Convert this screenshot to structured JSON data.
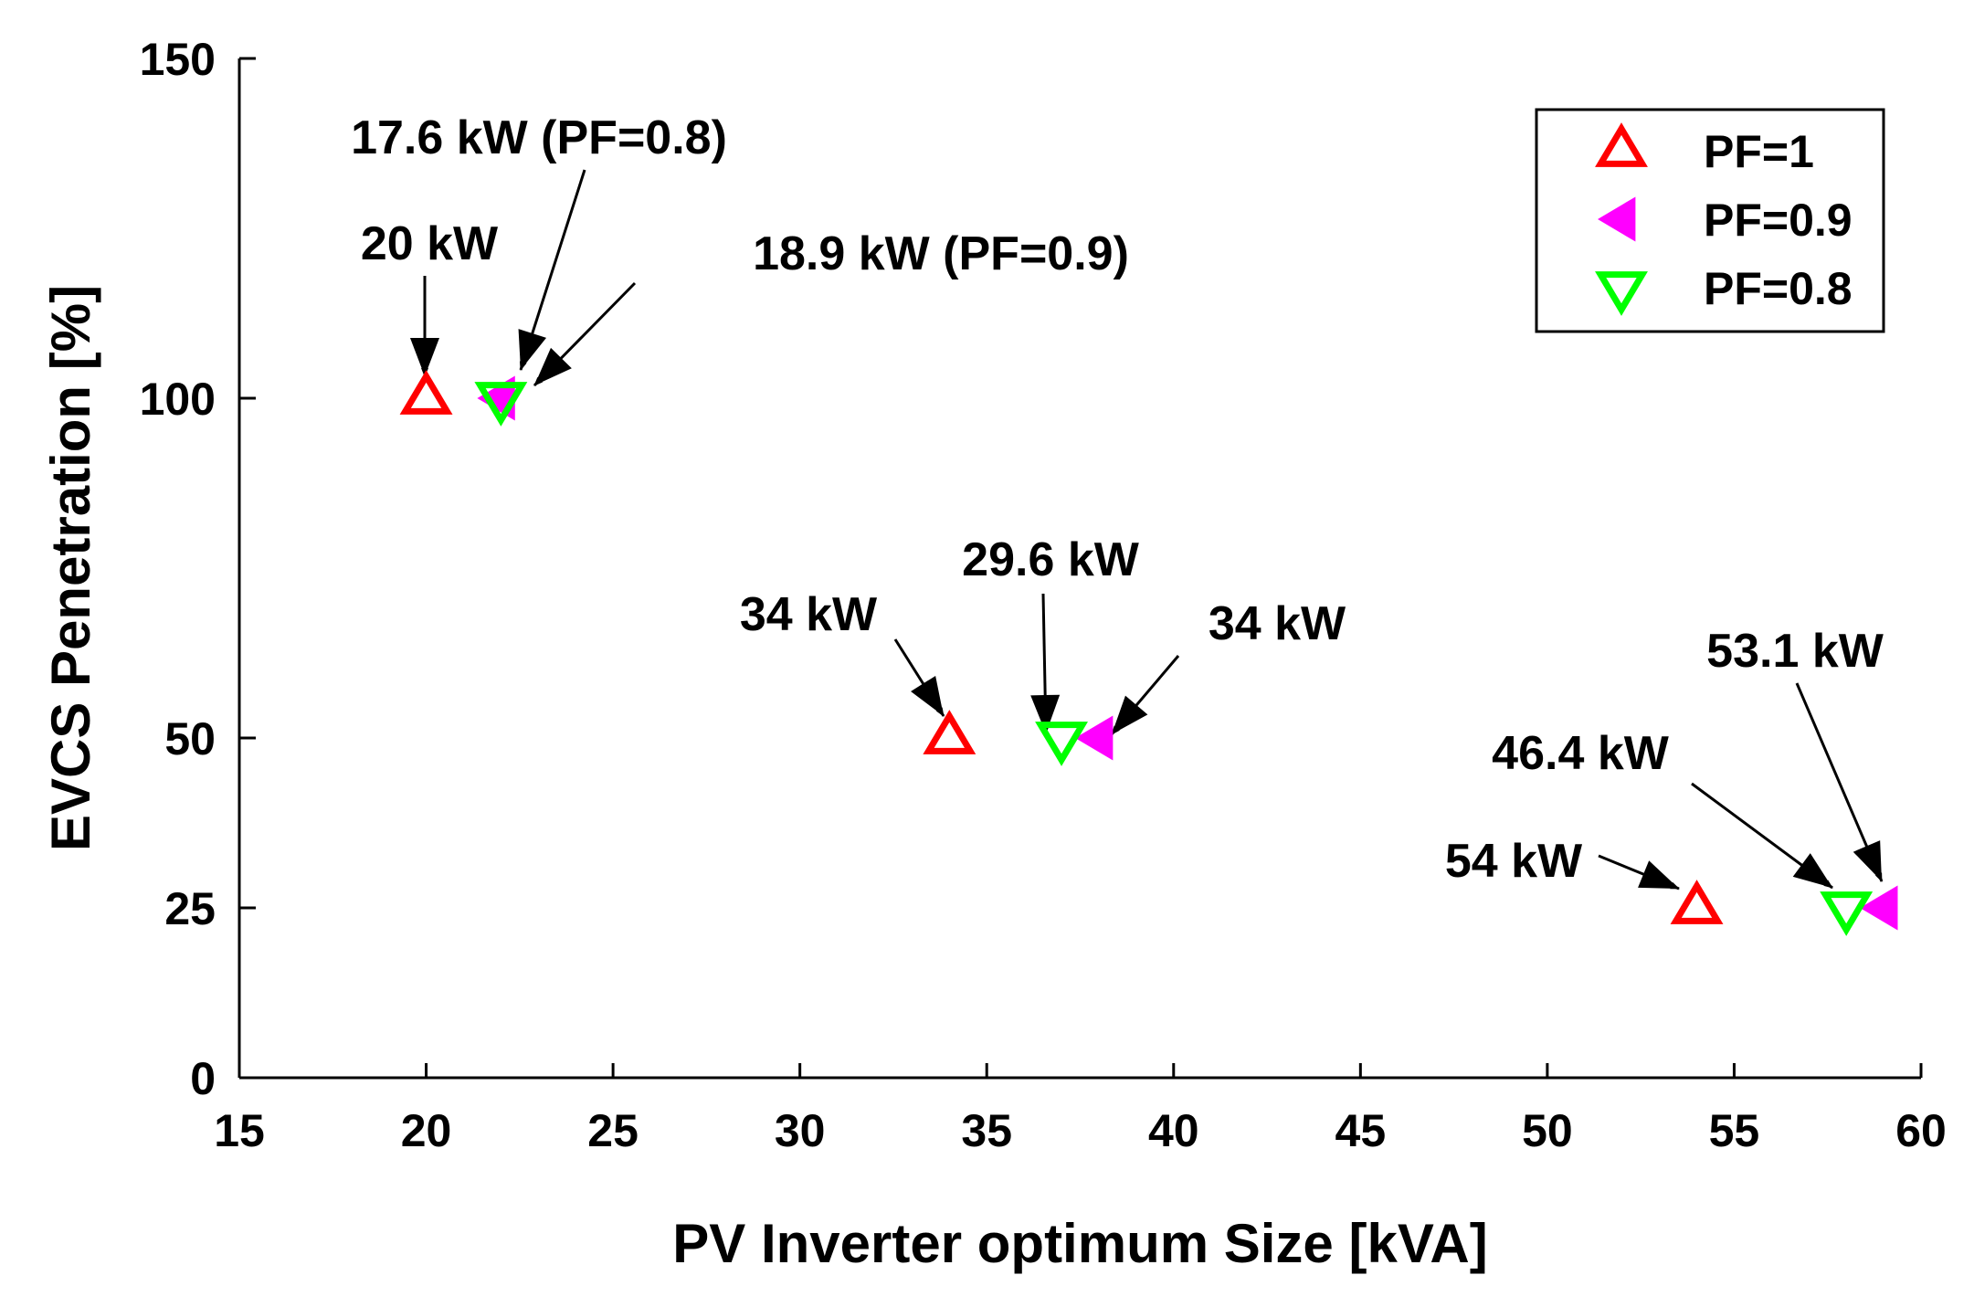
{
  "chart_data": {
    "type": "scatter",
    "title": "",
    "xlabel": "PV Inverter optimum Size [kVA]",
    "ylabel": "EVCS Penetration [%]",
    "xlim": [
      15,
      60
    ],
    "ylim": [
      0,
      150
    ],
    "xticks": [
      15,
      20,
      25,
      30,
      35,
      40,
      45,
      50,
      55,
      60
    ],
    "yticks": [
      0,
      25,
      50,
      100,
      150
    ],
    "grid": false,
    "legend_position": "top-right",
    "series": [
      {
        "name": "PF=1",
        "marker": "triangle-up",
        "filled": false,
        "color": "#ff0000",
        "points": [
          {
            "x": 20,
            "y": 100
          },
          {
            "x": 34,
            "y": 50
          },
          {
            "x": 54,
            "y": 25
          }
        ]
      },
      {
        "name": "PF=0.9",
        "marker": "triangle-left",
        "filled": true,
        "color": "#ff00ff",
        "points": [
          {
            "x": 22,
            "y": 100
          },
          {
            "x": 38,
            "y": 50
          },
          {
            "x": 59,
            "y": 25
          }
        ]
      },
      {
        "name": "PF=0.8",
        "marker": "triangle-down",
        "filled": false,
        "color": "#00ff00",
        "points": [
          {
            "x": 22,
            "y": 100
          },
          {
            "x": 37,
            "y": 50
          },
          {
            "x": 58,
            "y": 25
          }
        ]
      }
    ],
    "annotations": [
      {
        "text": "20 kW",
        "target_x": 20,
        "target_y": 100
      },
      {
        "text": "17.6 kW (PF=0.8)",
        "target_x": 22,
        "target_y": 100
      },
      {
        "text": "18.9 kW (PF=0.9)",
        "target_x": 22,
        "target_y": 100
      },
      {
        "text": "34 kW",
        "target_x": 34,
        "target_y": 50
      },
      {
        "text": "29.6 kW",
        "target_x": 37,
        "target_y": 50
      },
      {
        "text": "34 kW",
        "target_x": 38,
        "target_y": 50
      },
      {
        "text": "54 kW",
        "target_x": 54,
        "target_y": 25
      },
      {
        "text": "46.4 kW",
        "target_x": 58,
        "target_y": 25
      },
      {
        "text": "53.1 kW",
        "target_x": 59,
        "target_y": 25
      }
    ]
  }
}
